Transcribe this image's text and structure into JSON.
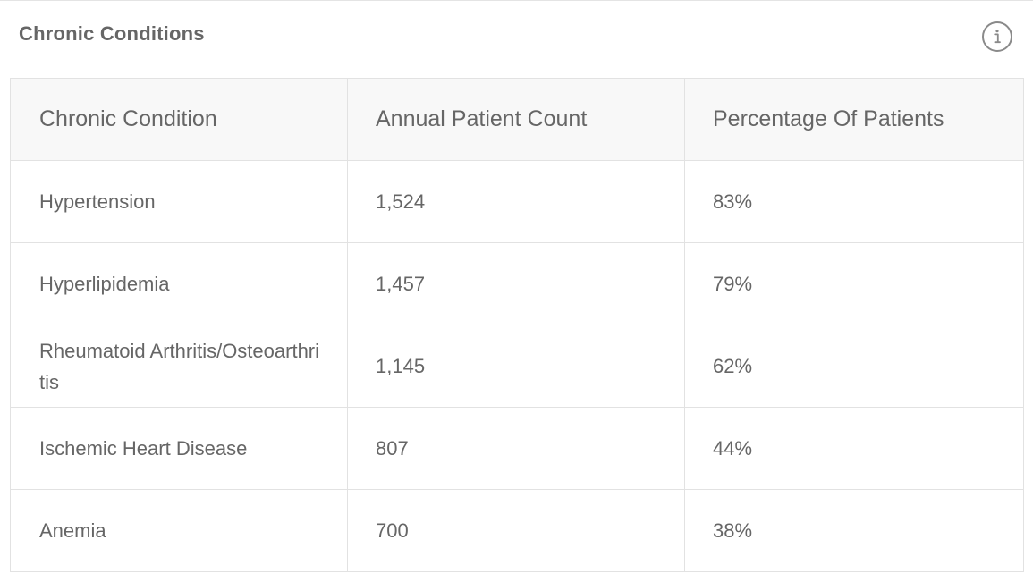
{
  "panel": {
    "title": "Chronic Conditions",
    "info_icon": "info-icon"
  },
  "table": {
    "headers": [
      "Chronic Condition",
      "Annual Patient Count",
      "Percentage Of Patients"
    ],
    "rows": [
      {
        "condition": "Hypertension",
        "count": "1,524",
        "percentage": "83%"
      },
      {
        "condition": "Hyperlipidemia",
        "count": "1,457",
        "percentage": "79%"
      },
      {
        "condition": "Rheumatoid Arthritis/Osteoarthritis",
        "count": "1,145",
        "percentage": "62%"
      },
      {
        "condition": "Ischemic Heart Disease",
        "count": "807",
        "percentage": "44%"
      },
      {
        "condition": "Anemia",
        "count": "700",
        "percentage": "38%"
      }
    ]
  },
  "colors": {
    "text": "#666666",
    "header_background": "#f8f8f8",
    "border": "#e2e2e2",
    "icon": "#8a8a8a"
  }
}
